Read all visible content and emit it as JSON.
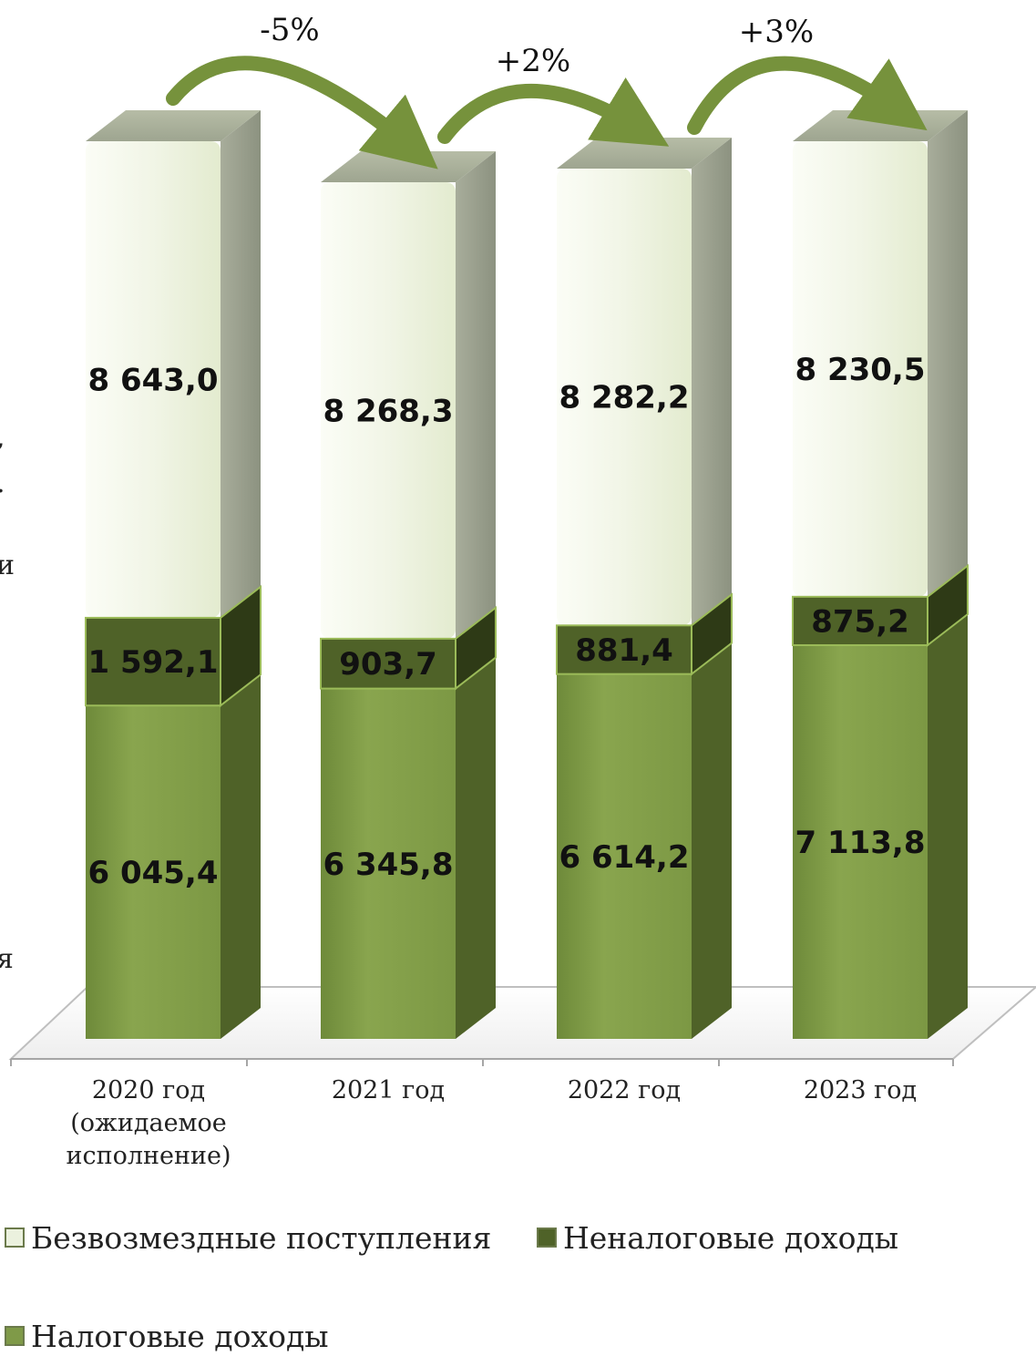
{
  "chart_data": {
    "type": "bar",
    "stacked": true,
    "style": "3d-columns",
    "categories": [
      "2020 год (ожидаемое исполнение)",
      "2021 год",
      "2022 год",
      "2023 год"
    ],
    "category_lines": [
      [
        "2020 год",
        "(ожидаемое",
        "исполнение)"
      ],
      [
        "2021 год"
      ],
      [
        "2022 год"
      ],
      [
        "2023 год"
      ]
    ],
    "series": [
      {
        "name": "Налоговые доходы",
        "values": [
          6045.4,
          6345.8,
          6614.2,
          7113.8
        ],
        "labels": [
          "6 045,4",
          "6 345,8",
          "6 614,2",
          "7 113,8"
        ],
        "color": "#7f9a48"
      },
      {
        "name": "Неналоговые доходы",
        "values": [
          1592.1,
          903.7,
          881.4,
          875.2
        ],
        "labels": [
          "1 592,1",
          "903,7",
          "881,4",
          "875,2"
        ],
        "color": "#4f6228"
      },
      {
        "name": "Безвозмездные поступления",
        "values": [
          8643.0,
          8268.3,
          8282.2,
          8230.5
        ],
        "labels": [
          "8 643,0",
          "8 268,3",
          "8 282,2",
          "8 230,5"
        ],
        "color": "#ebf1de"
      }
    ],
    "changes": [
      "-5%",
      "+2%",
      "+3%"
    ],
    "legend": {
      "placement": "bottom",
      "entries": [
        "Безвозмездные поступления",
        "Неналоговые доходы",
        "Налоговые доходы"
      ]
    },
    "grid": false,
    "clipped_left_text": [
      ",",
      ".",
      "и",
      "я"
    ]
  }
}
